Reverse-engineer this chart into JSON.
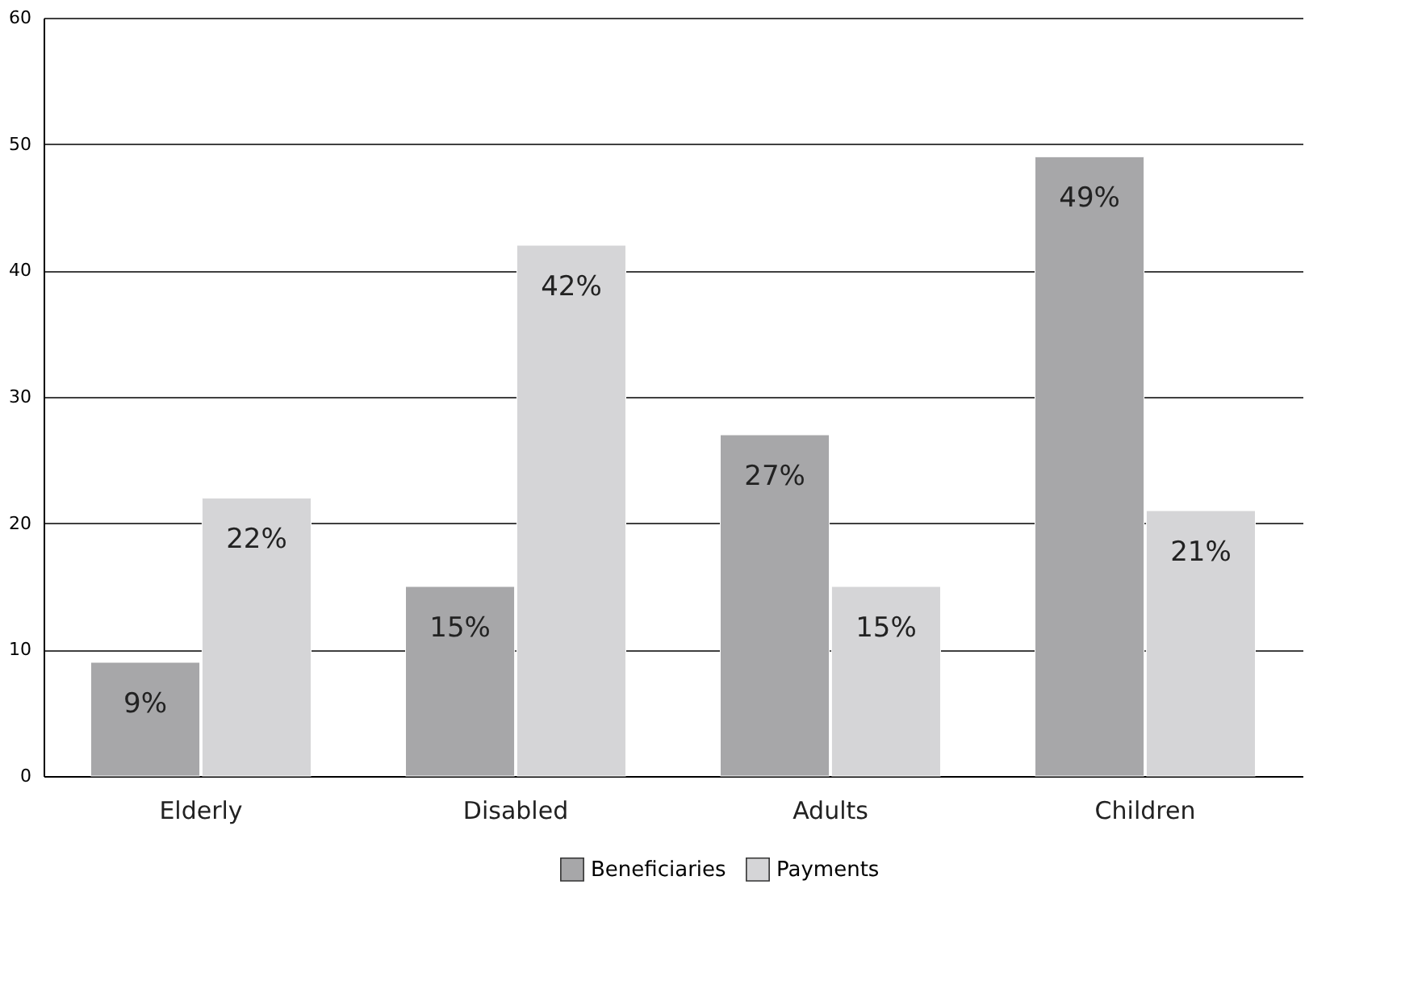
{
  "chart_data": {
    "type": "bar",
    "categories": [
      "Elderly",
      "Disabled",
      "Adults",
      "Children"
    ],
    "series": [
      {
        "name": "Beneficiaries",
        "color": "#a7a7a9",
        "values": [
          9,
          15,
          27,
          49
        ],
        "value_labels": [
          "9%",
          "15%",
          "27%",
          "49%"
        ]
      },
      {
        "name": "Payments",
        "color": "#d5d5d7",
        "values": [
          22,
          42,
          15,
          21
        ],
        "value_labels": [
          "22%",
          "42%",
          "15%",
          "21%"
        ]
      }
    ],
    "ylim": [
      0,
      60
    ],
    "yticks": [
      0,
      10,
      20,
      30,
      40,
      50,
      60
    ],
    "grid": "y",
    "legend": "bottom"
  }
}
